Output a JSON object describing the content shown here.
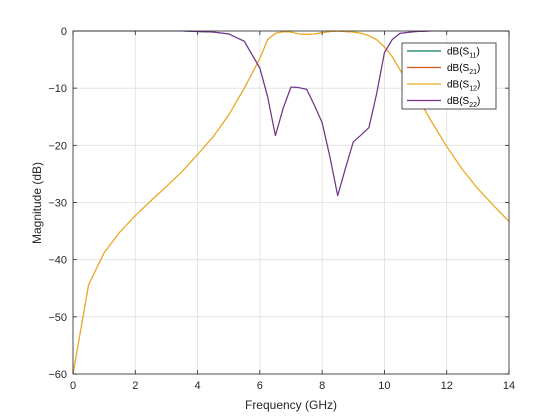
{
  "chart_data": {
    "type": "line",
    "xlabel": "Frequency (GHz)",
    "ylabel": "Magnitude (dB)",
    "xlim": [
      0,
      14
    ],
    "ylim": [
      -60,
      0
    ],
    "xticks": [
      0,
      2,
      4,
      6,
      8,
      10,
      12,
      14
    ],
    "yticks": [
      0,
      -10,
      -20,
      -30,
      -40,
      -50,
      -60
    ],
    "xtick_labels": [
      "0",
      "2",
      "4",
      "6",
      "8",
      "10",
      "12",
      "14"
    ],
    "ytick_labels": [
      "0",
      "−10",
      "−20",
      "−30",
      "−40",
      "−50",
      "−60"
    ],
    "grid": true,
    "legend_position": "top-right",
    "x": [
      0.0,
      0.5,
      1.0,
      1.5,
      2.0,
      2.5,
      3.0,
      3.5,
      4.0,
      4.5,
      5.0,
      5.5,
      6.0,
      6.25,
      6.5,
      6.75,
      7.0,
      7.25,
      7.5,
      7.75,
      8.0,
      8.25,
      8.5,
      8.75,
      9.0,
      9.25,
      9.5,
      9.75,
      10.0,
      10.25,
      10.5,
      11.0,
      11.5,
      12.0,
      12.5,
      13.0,
      13.5,
      14.0
    ],
    "series": [
      {
        "label_base": "dB(S",
        "label_sub": "11",
        "color": "#0f7b5a",
        "values": [
          0,
          0,
          0,
          0,
          0,
          0,
          0,
          0,
          -0.1,
          -0.2,
          -0.5,
          -1.8,
          -6.5,
          -11.5,
          -18.3,
          -13.5,
          -9.8,
          -9.9,
          -10.2,
          -13.0,
          -16.0,
          -22.0,
          -28.8,
          -24.0,
          -19.4,
          -18.2,
          -16.9,
          -11.0,
          -3.8,
          -1.5,
          -0.4,
          -0.1,
          0,
          0,
          0,
          0,
          0,
          0
        ]
      },
      {
        "label_base": "dB(S",
        "label_sub": "21",
        "color": "#d95319",
        "values": [
          -60.0,
          -44.4,
          -38.8,
          -35.2,
          -32.3,
          -29.7,
          -27.2,
          -24.6,
          -21.6,
          -18.5,
          -14.7,
          -10.0,
          -4.8,
          -1.5,
          -0.4,
          -0.1,
          -0.2,
          -0.5,
          -0.6,
          -0.5,
          -0.3,
          -0.1,
          0,
          -0.1,
          -0.2,
          -0.4,
          -0.8,
          -1.5,
          -2.8,
          -4.5,
          -6.8,
          -11.0,
          -15.7,
          -20.2,
          -24.2,
          -27.6,
          -30.5,
          -33.3
        ]
      },
      {
        "label_base": "dB(S",
        "label_sub": "12",
        "color": "#edb120",
        "values": [
          -60.0,
          -44.4,
          -38.8,
          -35.2,
          -32.3,
          -29.7,
          -27.2,
          -24.6,
          -21.6,
          -18.5,
          -14.7,
          -10.0,
          -4.8,
          -1.5,
          -0.4,
          -0.1,
          -0.2,
          -0.5,
          -0.6,
          -0.5,
          -0.3,
          -0.1,
          0,
          -0.1,
          -0.2,
          -0.4,
          -0.8,
          -1.5,
          -2.8,
          -4.5,
          -6.8,
          -11.0,
          -15.7,
          -20.2,
          -24.2,
          -27.6,
          -30.5,
          -33.3
        ]
      },
      {
        "label_base": "dB(S",
        "label_sub": "22",
        "color": "#7e2f8e",
        "values": [
          0,
          0,
          0,
          0,
          0,
          0,
          0,
          0,
          -0.1,
          -0.2,
          -0.5,
          -1.8,
          -6.5,
          -11.5,
          -18.3,
          -13.5,
          -9.8,
          -9.9,
          -10.2,
          -13.0,
          -16.0,
          -22.0,
          -28.8,
          -24.0,
          -19.4,
          -18.2,
          -16.9,
          -11.0,
          -3.8,
          -1.5,
          -0.4,
          -0.1,
          0,
          0,
          0,
          0,
          0,
          0
        ]
      }
    ]
  }
}
